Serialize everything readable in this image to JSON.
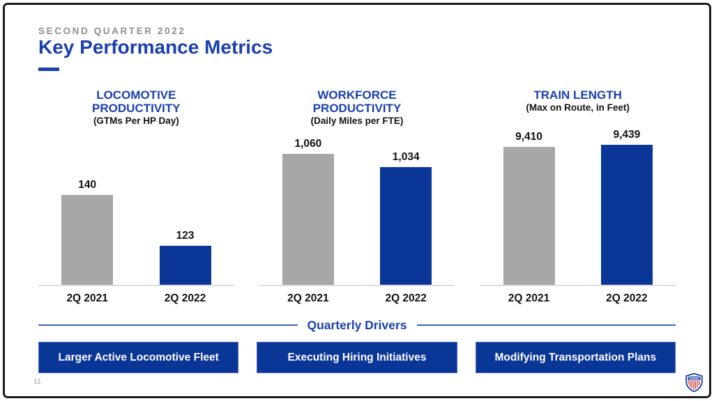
{
  "header": {
    "eyebrow": "SECOND QUARTER 2022",
    "title": "Key Performance Metrics"
  },
  "chart_data": [
    {
      "type": "bar",
      "title": "LOCOMOTIVE PRODUCTIVITY",
      "subtitle": "(GTMs Per HP Day)",
      "categories": [
        "2Q 2021",
        "2Q 2022"
      ],
      "values": [
        140,
        123
      ],
      "value_labels": [
        "140",
        "123"
      ],
      "ylim": [
        110,
        145
      ],
      "xlabel": "",
      "ylabel": "",
      "grid": false,
      "legend": false,
      "bar_colors": [
        "bar_gray",
        "brand_blue"
      ]
    },
    {
      "type": "bar",
      "title": "WORKFORCE PRODUCTIVITY",
      "subtitle": "(Daily Miles per FTE)",
      "categories": [
        "2Q 2021",
        "2Q 2022"
      ],
      "values": [
        1060,
        1034
      ],
      "value_labels": [
        "1,060",
        "1,034"
      ],
      "ylim": [
        800,
        1100
      ],
      "xlabel": "",
      "ylabel": "",
      "grid": false,
      "legend": false,
      "bar_colors": [
        "bar_gray",
        "brand_blue"
      ]
    },
    {
      "type": "bar",
      "title": "TRAIN LENGTH",
      "subtitle": "(Max on Route, in Feet)",
      "categories": [
        "2Q 2021",
        "2Q 2022"
      ],
      "values": [
        9410,
        9439
      ],
      "value_labels": [
        "9,410",
        "9,439"
      ],
      "ylim": [
        7500,
        9500
      ],
      "xlabel": "",
      "ylabel": "",
      "grid": false,
      "legend": false,
      "bar_colors": [
        "bar_gray",
        "brand_blue"
      ]
    }
  ],
  "drivers": {
    "heading": "Quarterly Drivers",
    "items": [
      "Larger Active Locomotive Fleet",
      "Executing Hiring Initiatives",
      "Modifying Transportation Plans"
    ]
  },
  "footer": {
    "page_number": "11"
  },
  "icons": {
    "logo": "union-pacific-shield-logo"
  },
  "colors": {
    "brand_blue": "#0a3698",
    "heading_blue": "#1a3fae",
    "bar_gray": "#a7a7a7",
    "divider_blue": "#3a63b5",
    "eyebrow_gray": "#8f8f8f",
    "axis_gray": "#dcdcdc",
    "banner_border": "#4a6abf",
    "logo_red": "#cf2f2f"
  }
}
